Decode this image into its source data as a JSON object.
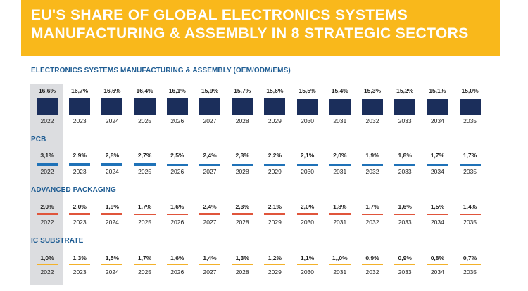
{
  "header": {
    "line1": "EU'S SHARE OF GLOBAL ELECTRONICS SYSTEMS",
    "line2": "MANUFACTURING & ASSEMBLY IN 8 STRATEGIC SECTORS"
  },
  "colors": {
    "banner": "#f9b81b",
    "title_text": "#1f5d93",
    "highlight": "#dcdde0"
  },
  "chart_data": [
    {
      "type": "bar",
      "title": "ELECTRONICS SYSTEMS MANUFACTURING & ASSEMBLY (OEM/ODM/EMS)",
      "color": "#1b2e5b",
      "categories": [
        "2022",
        "2023",
        "2024",
        "2025",
        "2026",
        "2027",
        "2028",
        "2029",
        "2030",
        "2031",
        "2032",
        "2033",
        "2034",
        "2035"
      ],
      "values": [
        16.6,
        16.7,
        16.6,
        16.4,
        16.1,
        15.9,
        15.7,
        15.6,
        15.5,
        15.4,
        15.3,
        15.2,
        15.1,
        15.0
      ],
      "labels": [
        "16,6%",
        "16,7%",
        "16,6%",
        "16,4%",
        "16,1%",
        "15,9%",
        "15,7%",
        "15,6%",
        "15,5%",
        "15,4%",
        "15,3%",
        "15,2%",
        "15,1%",
        "15,0%"
      ]
    },
    {
      "type": "bar",
      "title": "PCB",
      "color": "#1f72b8",
      "categories": [
        "2022",
        "2023",
        "2024",
        "2025",
        "2026",
        "2027",
        "2028",
        "2029",
        "2030",
        "2031",
        "2032",
        "2033",
        "2034",
        "2035"
      ],
      "values": [
        3.1,
        2.9,
        2.8,
        2.7,
        2.5,
        2.4,
        2.3,
        2.2,
        2.1,
        2.0,
        1.9,
        1.8,
        1.7,
        1.7
      ],
      "labels": [
        "3,1%",
        "2,9%",
        "2,8%",
        "2,7%",
        "2,5%",
        "2,4%",
        "2,3%",
        "2,2%",
        "2,1%",
        "2,0%",
        "1,9%",
        "1,8%",
        "1,7%",
        "1,7%"
      ]
    },
    {
      "type": "bar",
      "title": "ADVANCED PACKAGING",
      "color": "#e0553b",
      "categories": [
        "2022",
        "2023",
        "2024",
        "2025",
        "2026",
        "2027",
        "2028",
        "2029",
        "2030",
        "2031",
        "2032",
        "2033",
        "2034",
        "2035"
      ],
      "values": [
        2.0,
        2.0,
        1.9,
        1.7,
        1.6,
        2.4,
        2.3,
        2.1,
        2.0,
        1.8,
        1.7,
        1.6,
        1.5,
        1.4
      ],
      "labels": [
        "2,0%",
        "2,0%",
        "1,9%",
        "1,7%",
        "1,6%",
        "2,4%",
        "2,3%",
        "2,1%",
        "2,0%",
        "1,8%",
        "1,7%",
        "1,6%",
        "1,5%",
        "1,4%"
      ]
    },
    {
      "type": "bar",
      "title": "IC SUBSTRATE",
      "color": "#f3b12a",
      "categories": [
        "2022",
        "2023",
        "2024",
        "2025",
        "2026",
        "2027",
        "2028",
        "2029",
        "2030",
        "2031",
        "2032",
        "2033",
        "2034",
        "2035"
      ],
      "values": [
        1.0,
        1.3,
        1.5,
        1.7,
        1.6,
        1.4,
        1.3,
        1.2,
        1.1,
        1.0,
        0.9,
        0.9,
        0.8,
        0.7
      ],
      "labels": [
        "1,0%",
        "1,3%",
        "1,5%",
        "1,7%",
        "1,6%",
        "1,4%",
        "1,3%",
        "1,2%",
        "1,1%",
        "1,,0%",
        "0,9%",
        "0,9%",
        "0,8%",
        "0,7%"
      ]
    }
  ]
}
